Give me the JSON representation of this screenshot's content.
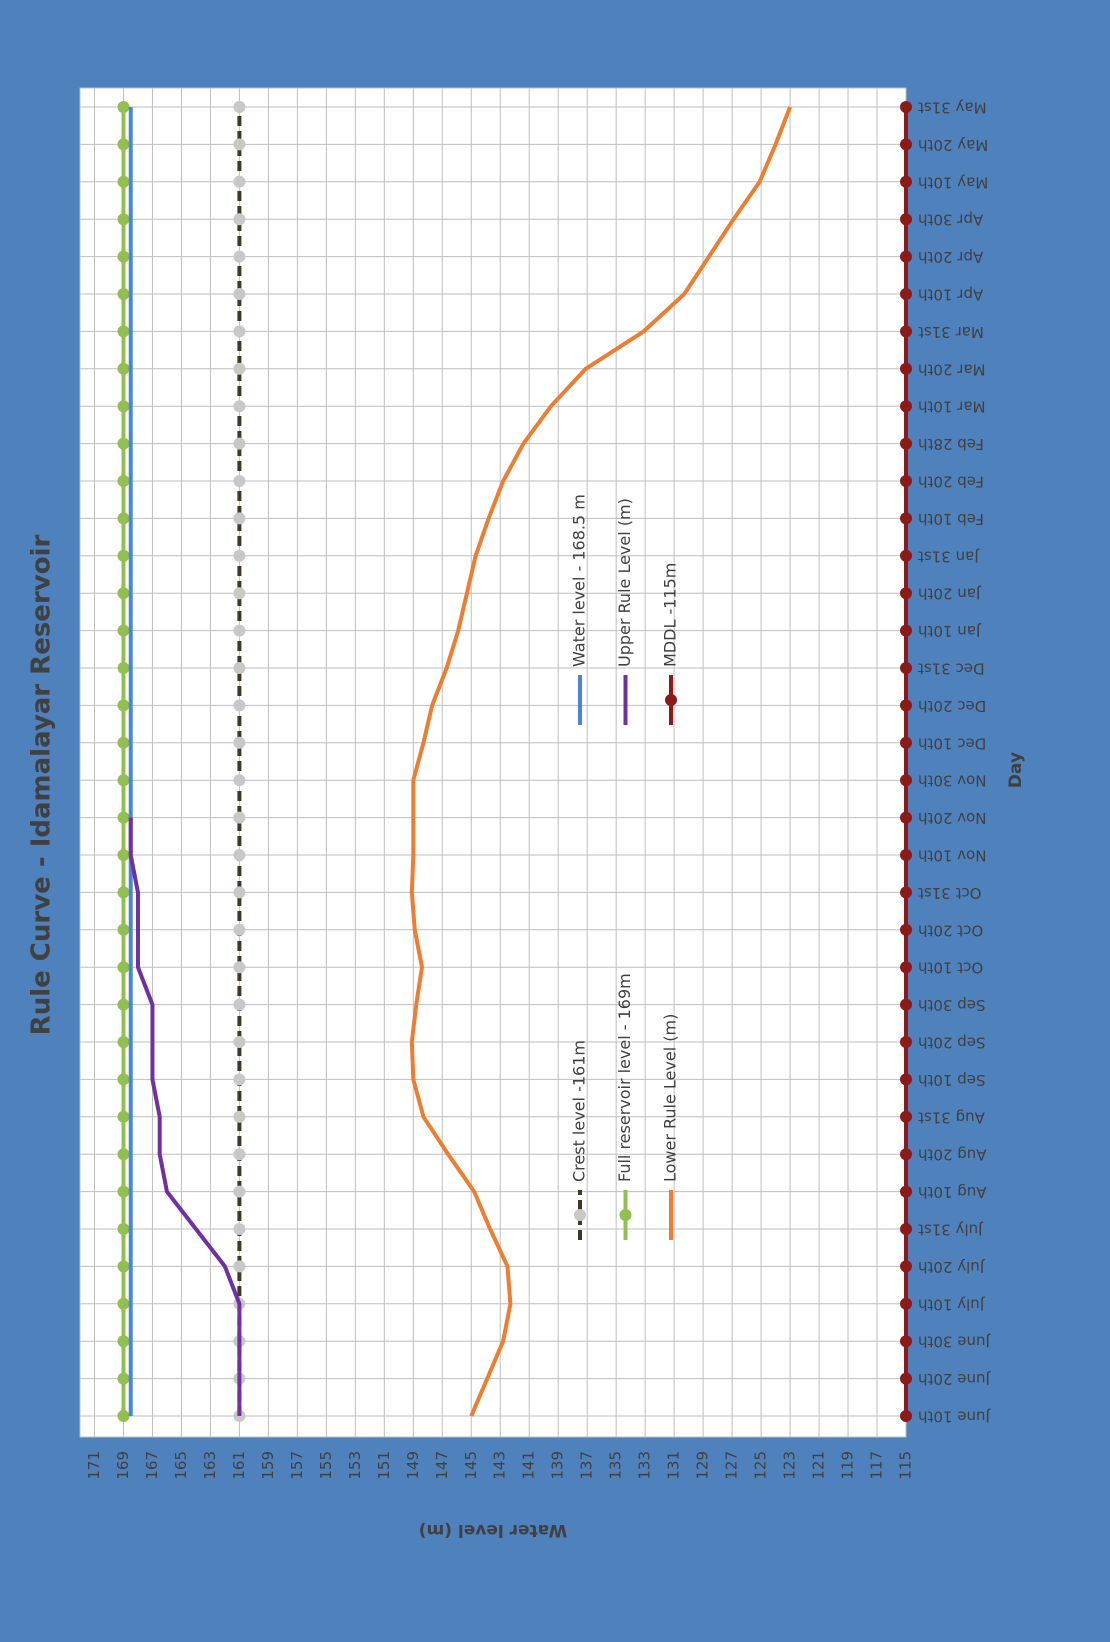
{
  "chart_data": {
    "type": "line",
    "title": "Rule Curve - Idamalayar Reservoir",
    "x_label": "Day",
    "y_label": "Water level (m)",
    "categories": [
      "June 10th",
      "June 20th",
      "June 30th",
      "July 10th",
      "July 20th",
      "July 31st",
      "Aug 10th",
      "Aug 20th",
      "Aug 31st",
      "Sep 10th",
      "Sep 20th",
      "Sep 30th",
      "Oct 10th",
      "Oct 20th",
      "Oct 31st",
      "Nov 10th",
      "Nov 20th",
      "Nov 30th",
      "Dec 10th",
      "Dec 20th",
      "Dec 31st",
      "Jan 10th",
      "Jan 20th",
      "Jan 31st",
      "Feb 10th",
      "Feb 20th",
      "Feb 28th",
      "Mar 10th",
      "Mar 20th",
      "Mar 31st",
      "Apr 10th",
      "Apr 20th",
      "Apr 30th",
      "May 10th",
      "May 20th",
      "May 31st"
    ],
    "ylim": [
      115,
      172
    ],
    "yticks": [
      115,
      117,
      119,
      121,
      123,
      125,
      127,
      129,
      131,
      133,
      135,
      137,
      139,
      141,
      143,
      145,
      147,
      149,
      151,
      153,
      155,
      157,
      159,
      161,
      163,
      165,
      167,
      169,
      171
    ],
    "grid": true,
    "series": [
      {
        "name": "Crest level -161m",
        "color": "#3f3a26",
        "marker": true,
        "marker_color": "#c8c8c8",
        "dash": true,
        "values": [
          161,
          161,
          161,
          161,
          161,
          161,
          161,
          161,
          161,
          161,
          161,
          161,
          161,
          161,
          161,
          161,
          161,
          161,
          161,
          161,
          161,
          161,
          161,
          161,
          161,
          161,
          161,
          161,
          161,
          161,
          161,
          161,
          161,
          161,
          161,
          161
        ]
      },
      {
        "name": "Full reservoir level - 169m",
        "color": "#92c050",
        "marker": true,
        "marker_color": "#92c050",
        "dash": false,
        "values": [
          169,
          169,
          169,
          169,
          169,
          169,
          169,
          169,
          169,
          169,
          169,
          169,
          169,
          169,
          169,
          169,
          169,
          169,
          169,
          169,
          169,
          169,
          169,
          169,
          169,
          169,
          169,
          169,
          169,
          169,
          169,
          169,
          169,
          169,
          169,
          169
        ]
      },
      {
        "name": "Lower Rule Level (m)",
        "color": "#ed7d31",
        "marker": false,
        "dash": false,
        "values": [
          145.0,
          143.9,
          142.8,
          142.3,
          142.5,
          143.7,
          144.8,
          146.6,
          148.3,
          149.0,
          149.1,
          148.8,
          148.4,
          148.9,
          149.1,
          149.0,
          149.0,
          149.0,
          148.3,
          147.7,
          146.7,
          145.9,
          145.3,
          144.7,
          143.8,
          142.8,
          141.4,
          139.5,
          137.1,
          133.1,
          130.3,
          128.6,
          126.9,
          125.1,
          124.0,
          123.0
        ]
      },
      {
        "name": "Water level - 168.5 m",
        "color": "#4a86d8",
        "marker": false,
        "dash": false,
        "values": [
          168.5,
          168.5,
          168.5,
          168.5,
          168.5,
          168.5,
          168.5,
          168.5,
          168.5,
          168.5,
          168.5,
          168.5,
          168.5,
          168.5,
          168.5,
          168.5,
          168.5,
          168.5,
          168.5,
          168.5,
          168.5,
          168.5,
          168.5,
          168.5,
          168.5,
          168.5,
          168.5,
          168.5,
          168.5,
          168.5,
          168.5,
          168.5,
          168.5,
          168.5,
          168.5,
          168.5
        ]
      },
      {
        "name": "Upper Rule Level (m)",
        "color": "#7030a0",
        "marker": false,
        "dash": false,
        "values": [
          161,
          161,
          161,
          161,
          162,
          164,
          166,
          166.5,
          166.5,
          167,
          167,
          167,
          168,
          168,
          168,
          168.5,
          168.5,
          null,
          null,
          null,
          null,
          null,
          null,
          null,
          null,
          null,
          null,
          null,
          null,
          null,
          null,
          null,
          null,
          null,
          null,
          null
        ]
      },
      {
        "name": "MDDL -115m",
        "color": "#8b1a1a",
        "marker": true,
        "marker_color": "#8b1a1a",
        "dash": false,
        "values": [
          115,
          115,
          115,
          115,
          115,
          115,
          115,
          115,
          115,
          115,
          115,
          115,
          115,
          115,
          115,
          115,
          115,
          115,
          115,
          115,
          115,
          115,
          115,
          115,
          115,
          115,
          115,
          115,
          115,
          115,
          115,
          115,
          115,
          115,
          115,
          115
        ]
      }
    ]
  }
}
